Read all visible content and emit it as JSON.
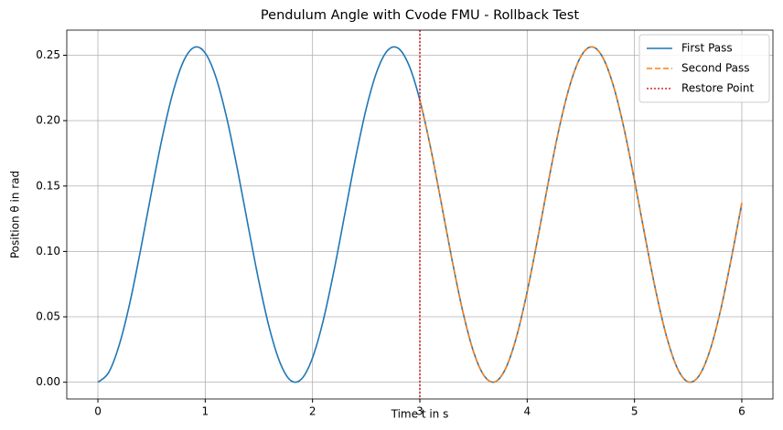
{
  "chart_data": {
    "type": "line",
    "title": "Pendulum Angle with Cvode FMU - Rollback Test",
    "xlabel": "Time t in s",
    "ylabel": "Position θ in rad",
    "xlim": [
      -0.29,
      6.29
    ],
    "ylim": [
      -0.0128,
      0.2692
    ],
    "xticks": [
      0,
      1,
      2,
      3,
      4,
      5,
      6
    ],
    "yticks": [
      {
        "value": 0,
        "label": "0.00"
      },
      {
        "value": 0.05,
        "label": "0.05"
      },
      {
        "value": 0.1,
        "label": "0.10"
      },
      {
        "value": 0.15,
        "label": "0.15"
      },
      {
        "value": 0.2,
        "label": "0.20"
      },
      {
        "value": 0.25,
        "label": "0.25"
      }
    ],
    "grid": true,
    "legend": "upper right",
    "series": [
      {
        "name": "First Pass",
        "color": "#1f77b4",
        "style": "solid",
        "x": [
          0,
          0.1,
          0.2,
          0.3,
          0.4,
          0.5,
          0.6,
          0.7,
          0.8,
          0.9,
          1,
          1.1,
          1.2,
          1.3,
          1.4,
          1.5,
          1.6,
          1.7,
          1.8,
          1.9,
          2,
          2.1,
          2.2,
          2.3,
          2.4,
          2.5,
          2.6,
          2.7,
          2.8,
          2.9,
          3,
          3.1,
          3.2,
          3.3,
          3.4,
          3.5,
          3.6,
          3.7,
          3.8,
          3.9,
          4,
          4.1,
          4.2,
          4.3,
          4.4,
          4.5,
          4.6,
          4.7,
          4.8,
          4.9,
          5,
          5.1,
          5.2,
          5.3,
          5.4,
          5.5,
          5.6,
          5.7,
          5.8,
          5.9,
          6
        ],
        "values": [
          0,
          0.0074,
          0.0288,
          0.0615,
          0.1021,
          0.1457,
          0.1872,
          0.2218,
          0.2458,
          0.2561,
          0.2517,
          0.2331,
          0.2022,
          0.1629,
          0.1195,
          0.0771,
          0.0407,
          0.0144,
          0.0011,
          0.0027,
          0.0187,
          0.0473,
          0.0853,
          0.1282,
          0.1711,
          0.2091,
          0.2377,
          0.2537,
          0.2553,
          0.242,
          0.2157,
          0.1793,
          0.1369,
          0.0935,
          0.0542,
          0.0233,
          0.0048,
          0.0003,
          0.0106,
          0.0345,
          0.0692,
          0.1107,
          0.1543,
          0.1949,
          0.2276,
          0.249,
          0.2564,
          0.249,
          0.2276,
          0.1949,
          0.1543,
          0.1107,
          0.0692,
          0.0346,
          0.0106,
          0.0003,
          0.0048,
          0.0235,
          0.0543,
          0.0937,
          0.137
        ]
      },
      {
        "name": "Second Pass",
        "color": "#ff7f0e",
        "style": "dashed",
        "x": [
          3,
          3.1,
          3.2,
          3.3,
          3.4,
          3.5,
          3.6,
          3.7,
          3.8,
          3.9,
          4,
          4.1,
          4.2,
          4.3,
          4.4,
          4.5,
          4.6,
          4.7,
          4.8,
          4.9,
          5,
          5.1,
          5.2,
          5.3,
          5.4,
          5.5,
          5.6,
          5.7,
          5.8,
          5.9,
          6
        ],
        "values": [
          0.2157,
          0.1793,
          0.1369,
          0.0935,
          0.0542,
          0.0233,
          0.0048,
          0.0003,
          0.0106,
          0.0345,
          0.0692,
          0.1107,
          0.1543,
          0.1949,
          0.2276,
          0.249,
          0.2564,
          0.249,
          0.2276,
          0.1949,
          0.1543,
          0.1107,
          0.0692,
          0.0346,
          0.0106,
          0.0003,
          0.0048,
          0.0235,
          0.0543,
          0.0937,
          0.137
        ]
      }
    ],
    "vline": {
      "name": "Restore Point",
      "color": "#d62728",
      "style": "dotted",
      "x": 3
    }
  }
}
